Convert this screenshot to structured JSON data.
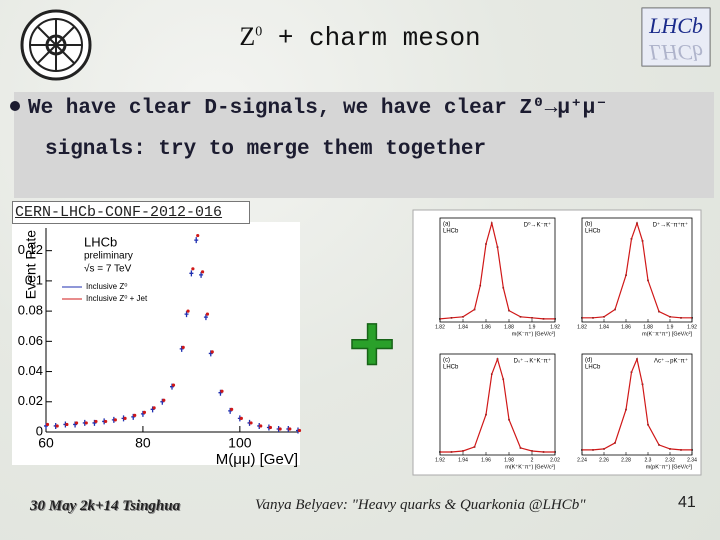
{
  "header": {
    "title_symbol": "Z",
    "title_superscript": "0",
    "title_rest": "+ charm meson",
    "logo_text": "LHCb"
  },
  "bullet": {
    "lines": [
      "We have clear D-signals, we have clear Z⁰→μ⁺μ⁻",
      "signals: try to merge them together"
    ]
  },
  "reference": "CERN-LHCb-CONF-2012-016",
  "plus_sign": "+",
  "footer": {
    "date": "30 May 2k+14 Tsinghua",
    "author": "Vanya Belyaev: \"Heavy quarks & Quarkonia @LHCb\"",
    "page": "41"
  },
  "chart_data": [
    {
      "type": "scatter",
      "ylabel": "Event Rate",
      "xlabel": "M(μμ)   [GeV]",
      "annotations": [
        "LHCb",
        "preliminary",
        "√s = 7 TeV"
      ],
      "xlim": [
        60,
        112
      ],
      "xticks": [
        60,
        80,
        100
      ],
      "ylim": [
        0,
        0.135
      ],
      "yticks": [
        0,
        0.02,
        0.04,
        0.06,
        0.08,
        0.1,
        0.12
      ],
      "x": [
        60,
        62,
        64,
        66,
        68,
        70,
        72,
        74,
        76,
        78,
        80,
        82,
        84,
        86,
        88,
        89,
        90,
        91,
        92,
        93,
        94,
        96,
        98,
        100,
        102,
        104,
        106,
        108,
        110,
        112
      ],
      "series": [
        {
          "name": "Inclusive Z⁰",
          "color": "#1f2fb0",
          "values": [
            0.004,
            0.004,
            0.005,
            0.005,
            0.006,
            0.006,
            0.007,
            0.008,
            0.009,
            0.01,
            0.012,
            0.015,
            0.02,
            0.03,
            0.055,
            0.078,
            0.105,
            0.127,
            0.104,
            0.076,
            0.052,
            0.026,
            0.014,
            0.009,
            0.006,
            0.004,
            0.003,
            0.002,
            0.002,
            0.001
          ]
        },
        {
          "name": "Inclusive Z⁰ + Jet",
          "color": "#d01818",
          "values": [
            0.005,
            0.004,
            0.005,
            0.006,
            0.006,
            0.007,
            0.007,
            0.008,
            0.009,
            0.011,
            0.013,
            0.016,
            0.021,
            0.031,
            0.056,
            0.08,
            0.108,
            0.13,
            0.106,
            0.078,
            0.053,
            0.027,
            0.015,
            0.009,
            0.006,
            0.004,
            0.003,
            0.002,
            0.002,
            0.001
          ]
        }
      ]
    },
    {
      "type": "line",
      "panel": "(a)",
      "title": "D⁰→K⁻π⁺",
      "annotation": "LHCb",
      "xlabel": "m(K⁻π⁺) [GeV/c²]",
      "color": "#d01818",
      "xlim": [
        1.82,
        1.92
      ],
      "xticks": [
        1.82,
        1.84,
        1.86,
        1.88,
        1.9,
        1.92
      ],
      "ylim": [
        0,
        1
      ],
      "x": [
        1.82,
        1.83,
        1.84,
        1.85,
        1.855,
        1.86,
        1.865,
        1.87,
        1.875,
        1.88,
        1.89,
        1.9,
        1.91,
        1.92
      ],
      "values": [
        0.03,
        0.04,
        0.05,
        0.12,
        0.35,
        0.75,
        0.95,
        0.72,
        0.33,
        0.11,
        0.05,
        0.04,
        0.03,
        0.03
      ]
    },
    {
      "type": "line",
      "panel": "(b)",
      "title": "D⁺→K⁻π⁺π⁺",
      "annotation": "LHCb",
      "xlabel": "m(K⁻π⁺π⁺) [GeV/c²]",
      "color": "#d01818",
      "xlim": [
        1.82,
        1.92
      ],
      "xticks": [
        1.82,
        1.84,
        1.86,
        1.88,
        1.9,
        1.92
      ],
      "ylim": [
        0,
        1
      ],
      "x": [
        1.82,
        1.83,
        1.84,
        1.85,
        1.86,
        1.865,
        1.87,
        1.875,
        1.88,
        1.89,
        1.9,
        1.91,
        1.92
      ],
      "values": [
        0.04,
        0.04,
        0.05,
        0.12,
        0.45,
        0.8,
        0.95,
        0.78,
        0.4,
        0.1,
        0.05,
        0.04,
        0.04
      ]
    },
    {
      "type": "line",
      "panel": "(c)",
      "title": "Dₛ⁺→K⁺K⁻π⁺",
      "annotation": "LHCb",
      "xlabel": "m(K⁺K⁻π⁺) [GeV/c²]",
      "color": "#d01818",
      "xlim": [
        1.92,
        2.02
      ],
      "xticks": [
        1.92,
        1.94,
        1.96,
        1.98,
        2,
        2.02
      ],
      "ylim": [
        0,
        1
      ],
      "x": [
        1.92,
        1.93,
        1.94,
        1.95,
        1.96,
        1.965,
        1.97,
        1.975,
        1.98,
        1.99,
        2.0,
        2.01,
        2.02
      ],
      "values": [
        0.03,
        0.03,
        0.04,
        0.08,
        0.4,
        0.8,
        0.95,
        0.75,
        0.35,
        0.07,
        0.04,
        0.03,
        0.03
      ]
    },
    {
      "type": "line",
      "panel": "(d)",
      "title": "Λc⁺→pK⁻π⁺",
      "annotation": "LHCb",
      "xlabel": "m(pK⁻π⁺) [GeV/c²]",
      "color": "#d01818",
      "xlim": [
        2.24,
        2.34
      ],
      "xticks": [
        2.24,
        2.26,
        2.28,
        2.3,
        2.32,
        2.34
      ],
      "ylim": [
        0,
        1
      ],
      "x": [
        2.24,
        2.25,
        2.26,
        2.27,
        2.28,
        2.285,
        2.29,
        2.295,
        2.3,
        2.31,
        2.32,
        2.33,
        2.34
      ],
      "values": [
        0.05,
        0.05,
        0.06,
        0.12,
        0.45,
        0.82,
        0.95,
        0.7,
        0.3,
        0.1,
        0.06,
        0.05,
        0.05
      ]
    }
  ]
}
